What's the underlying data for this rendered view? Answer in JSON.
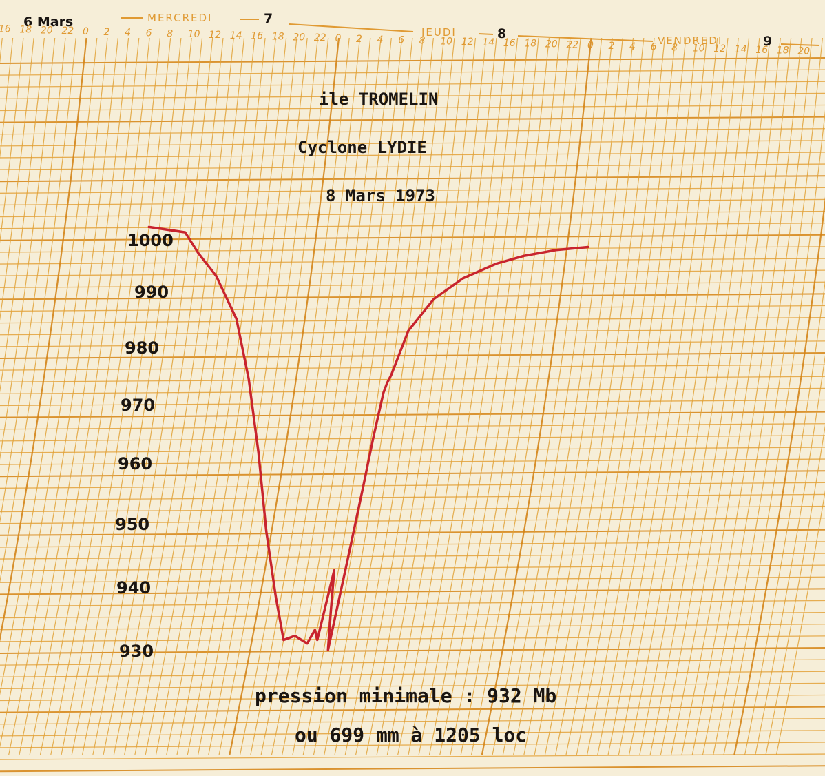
{
  "chart_data": {
    "type": "line",
    "title_lines": [
      "ile TROMELIN",
      "Cyclone LYDIE",
      "8 Mars 1973"
    ],
    "header": {
      "start_label": "6 Mars",
      "days": [
        {
          "name": "MERCREDI",
          "num": "7"
        },
        {
          "name": "JEUDI",
          "num": "8"
        },
        {
          "name": "VENDREDI",
          "num": "9"
        }
      ],
      "hour_labels": [
        "16",
        "18",
        "20",
        "22",
        "0",
        "2",
        "4",
        "6",
        "8",
        "10",
        "12",
        "14",
        "16",
        "18",
        "20",
        "22",
        "0",
        "2",
        "4",
        "6",
        "8",
        "10",
        "12",
        "14",
        "16",
        "18",
        "20",
        "22",
        "0",
        "2",
        "4",
        "6",
        "8",
        "10",
        "12",
        "14",
        "16",
        "18",
        "20"
      ]
    },
    "y_ticks": [
      "1000",
      "990",
      "980",
      "970",
      "960",
      "950",
      "940",
      "930"
    ],
    "ylim": [
      930,
      1000
    ],
    "x_unit": "hours from 7 Mars 00h",
    "series": [
      {
        "x": [
          8.0,
          11.5,
          13.0,
          15.0,
          17.5,
          19.5,
          21.5,
          23.5,
          25.5,
          27.0,
          28.0,
          29.3,
          29.8,
          30.2,
          30.6,
          31.0,
          31.4,
          31.7,
          32.0,
          32.2,
          32.5,
          32.7,
          33.0,
          34.0,
          36.0,
          38.5,
          41.5,
          44.0,
          47.0,
          50.0
        ],
        "y": [
          1001.8,
          1000.9,
          997.4,
          993.5,
          986.2,
          976.0,
          963.6,
          950.2,
          939.1,
          931.8,
          932.5,
          931.2,
          933.5,
          931.8,
          943.6,
          936.4,
          930.1,
          945.3,
          958.0,
          966.0,
          973.7,
          975.3,
          976.8,
          984.2,
          989.6,
          993.1,
          995.6,
          996.9,
          997.9,
          998.4
        ]
      }
    ],
    "notes": [
      "pression minimale : 932 Mb",
      "ou 699 mm à 1205 loc"
    ]
  }
}
